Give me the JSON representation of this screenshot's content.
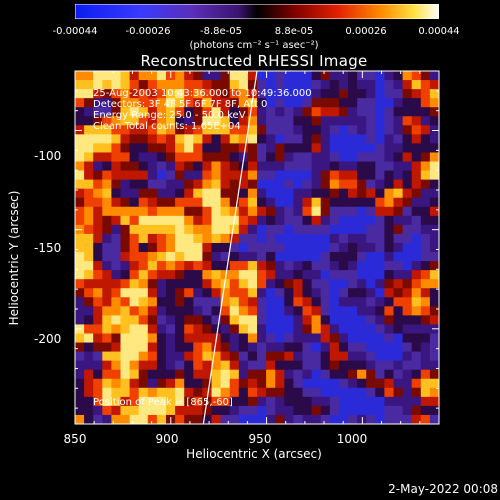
{
  "colorbar": {
    "tick_labels": [
      "-0.00044",
      "-0.00026",
      "-8.8e-05",
      "8.8e-05",
      "0.00026",
      "0.00044"
    ],
    "unit_label": "(photons cm⁻² s⁻¹ asec⁻²)",
    "range": [
      -0.00044,
      0.00044
    ]
  },
  "chart_data": {
    "type": "heatmap",
    "title": "Reconstructed RHESSI Image",
    "xlabel": "Heliocentric X (arcsec)",
    "ylabel": "Heliocentric Y (arcsec)",
    "x_ticks": [
      "850",
      "900",
      "950",
      "1000"
    ],
    "y_ticks": [
      "-100",
      "-150",
      "-200"
    ],
    "xlim": [
      850,
      1040
    ],
    "ylim": [
      -248,
      -70
    ],
    "annotations": [
      "25-Aug-2003 10:43:36.000 to 10:49:36.000",
      "Detectors: 3F 4F 5F 6F 7F 8F, Att 0",
      "Energy Range: 25.0 - 50.0 keV",
      "Clean    Total counts: 1.65E+04"
    ],
    "peak_label": "Position of Peak = [865,-60]",
    "limb_line": {
      "x": [
        917,
        945
      ],
      "y": [
        -248,
        -70
      ]
    },
    "grid": false
  },
  "footer": {
    "timestamp": "2-May-2022 00:08"
  }
}
